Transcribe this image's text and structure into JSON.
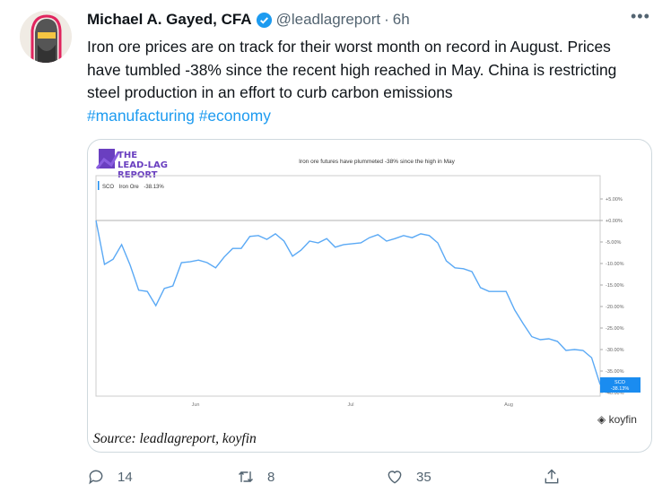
{
  "tweet": {
    "author_name": "Michael A. Gayed, CFA",
    "verified": true,
    "handle": "@leadlagreport",
    "separator": "·",
    "time": "6h",
    "text": "Iron ore prices are on track for their worst month on record in August. Prices have tumbled -38% since the recent high reached in May. China is restricting steel production in an effort to curb carbon emissions",
    "hashtags": [
      "#manufacturing",
      "#economy"
    ],
    "more_icon": "ellipsis-icon"
  },
  "media": {
    "logo_text": [
      "THE",
      "LEAD-LAG",
      "REPORT"
    ],
    "source": "Source: leadlagreport, koyfin",
    "watermark": "koyfin",
    "chart_data": {
      "type": "line",
      "title": "Iron ore futures have plummeted -38% since the high in May",
      "legend": {
        "ticker": "SCO",
        "name": "Iron Ore",
        "value": "-38.13%"
      },
      "x_ticks": [
        "Jun",
        "Jul",
        "Aug"
      ],
      "y_ticks": [
        "+5.00%",
        "+0.00%",
        "-5.00%",
        "-10.00%",
        "-15.00%",
        "-20.00%",
        "-25.00%",
        "-30.00%",
        "-35.00%",
        "-40.00%"
      ],
      "ylim": [
        -40,
        5
      ],
      "reference_line": 0,
      "last_label": {
        "ticker": "SCO",
        "value": "-38.13%"
      },
      "series_color": "#5aa9f5",
      "label_color": "#1a8cf0",
      "values": [
        0,
        -10.2,
        -9,
        -5.6,
        -10.4,
        -16.2,
        -16.5,
        -19.8,
        -15.8,
        -15.2,
        -9.8,
        -9.6,
        -9.2,
        -9.8,
        -11,
        -8.5,
        -6.5,
        -6.5,
        -3.7,
        -3.5,
        -4.4,
        -3.1,
        -4.8,
        -8.3,
        -6.9,
        -4.8,
        -5.2,
        -4.2,
        -6.2,
        -5.6,
        -5.4,
        -5.2,
        -4,
        -3.3,
        -4.8,
        -4.2,
        -3.5,
        -4,
        -3.1,
        -3.5,
        -5.2,
        -9.4,
        -11,
        -11.2,
        -11.9,
        -15.6,
        -16.5,
        -16.5,
        -16.5,
        -20.8,
        -24,
        -27,
        -27.7,
        -27.5,
        -28.1,
        -30.2,
        -30,
        -30.2,
        -31.9,
        -38.13
      ]
    }
  },
  "actions": {
    "replies": "14",
    "retweets": "8",
    "likes": "35"
  }
}
